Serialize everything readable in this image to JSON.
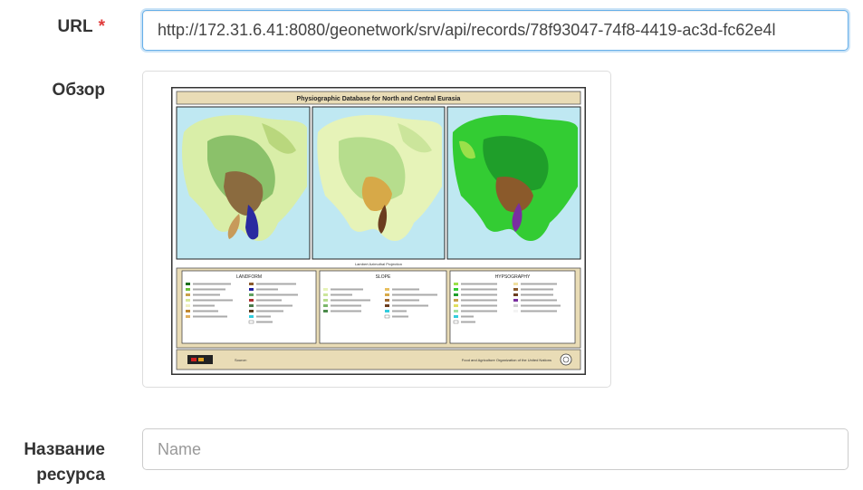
{
  "form": {
    "url": {
      "label": "URL",
      "required_mark": "*",
      "value": "http://172.31.6.41:8080/geonetwork/srv/api/records/78f93047-74f8-4419-ac3d-fc62e4l"
    },
    "overview": {
      "label": "Обзор",
      "image": {
        "title": "Physiographic Database for North and Central Eurasia",
        "projection_note": "Lambert Azimuthal Projection",
        "legends": [
          {
            "title": "LANDFORM"
          },
          {
            "title": "SLOPE"
          },
          {
            "title": "HYPSOGRAPHY"
          }
        ],
        "footer_source": "Source:",
        "footer_org": "Food and Agriculture Organization of the United Nations"
      }
    },
    "resource_name": {
      "label": "Название ресурса",
      "placeholder": "Name"
    }
  },
  "colors": {
    "focus_border": "#66afe9",
    "required": "#e03b3b",
    "label_text": "#333333"
  }
}
